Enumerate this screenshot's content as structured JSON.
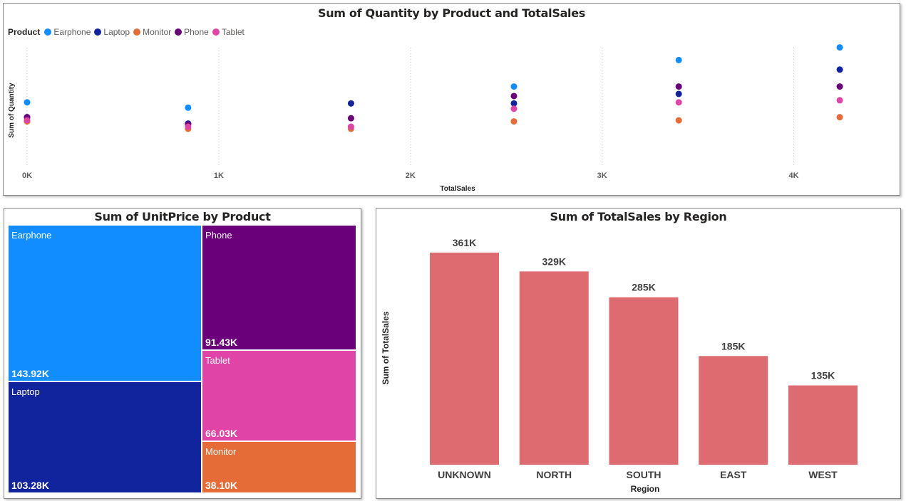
{
  "scatter": {
    "title": "Sum of Quantity by Product and TotalSales",
    "legend_title": "Product",
    "xlabel": "TotalSales",
    "ylabel": "Sum of Quantity",
    "chart_data": {
      "type": "scatter",
      "xlabel": "TotalSales",
      "ylabel": "Sum of Quantity",
      "xlim": [
        0,
        4500
      ],
      "ylim": [
        0,
        140
      ],
      "x_ticks": [
        0,
        1000,
        2000,
        3000,
        4000
      ],
      "x_tick_labels": [
        "0K",
        "1K",
        "2K",
        "3K",
        "4K"
      ],
      "grid": "vertical dotted",
      "legend_position": "top-left",
      "series": [
        {
          "name": "Earphone",
          "color": "#118dff",
          "points": [
            [
              0,
              60
            ],
            [
              840,
              55
            ],
            [
              2540,
              75
            ],
            [
              3400,
              100
            ],
            [
              4240,
              112
            ]
          ]
        },
        {
          "name": "Laptop",
          "color": "#12239e",
          "points": [
            [
              0,
              46
            ],
            [
              840,
              40
            ],
            [
              1690,
              59
            ],
            [
              2540,
              59
            ],
            [
              3400,
              68
            ],
            [
              4240,
              91
            ]
          ]
        },
        {
          "name": "Monitor",
          "color": "#e66c37",
          "points": [
            [
              0,
              42
            ],
            [
              840,
              35
            ],
            [
              1690,
              35
            ],
            [
              2540,
              42
            ],
            [
              3400,
              43
            ],
            [
              4240,
              46
            ]
          ]
        },
        {
          "name": "Phone",
          "color": "#6b007b",
          "points": [
            [
              0,
              46
            ],
            [
              840,
              39
            ],
            [
              1690,
              45
            ],
            [
              2540,
              66
            ],
            [
              3400,
              75
            ],
            [
              4240,
              75
            ]
          ]
        },
        {
          "name": "Tablet",
          "color": "#e044a7",
          "points": [
            [
              0,
              43
            ],
            [
              840,
              37
            ],
            [
              1690,
              37
            ],
            [
              2540,
              54
            ],
            [
              3400,
              60
            ],
            [
              4240,
              62
            ]
          ]
        }
      ]
    }
  },
  "treemap": {
    "title": "Sum of UnitPrice by Product",
    "chart_data": {
      "type": "treemap",
      "items": [
        {
          "label": "Earphone",
          "value": "143.92K",
          "color": "#118dff"
        },
        {
          "label": "Laptop",
          "value": "103.28K",
          "color": "#12239e"
        },
        {
          "label": "Phone",
          "value": "91.43K",
          "color": "#6b007b"
        },
        {
          "label": "Tablet",
          "value": "66.03K",
          "color": "#e044a7"
        },
        {
          "label": "Monitor",
          "value": "38.10K",
          "color": "#e66c37"
        }
      ]
    }
  },
  "bar": {
    "title": "Sum of TotalSales by Region",
    "xlabel": "Region",
    "ylabel": "Sum of TotalSales",
    "chart_data": {
      "type": "bar",
      "categories": [
        "UNKNOWN",
        "NORTH",
        "SOUTH",
        "EAST",
        "WEST"
      ],
      "values": [
        361000,
        329000,
        285000,
        185000,
        135000
      ],
      "data_labels": [
        "361K",
        "329K",
        "285K",
        "185K",
        "135K"
      ],
      "color": "#dd6b70",
      "xlabel": "Region",
      "ylabel": "Sum of TotalSales",
      "ylim": [
        0,
        361000
      ]
    }
  }
}
